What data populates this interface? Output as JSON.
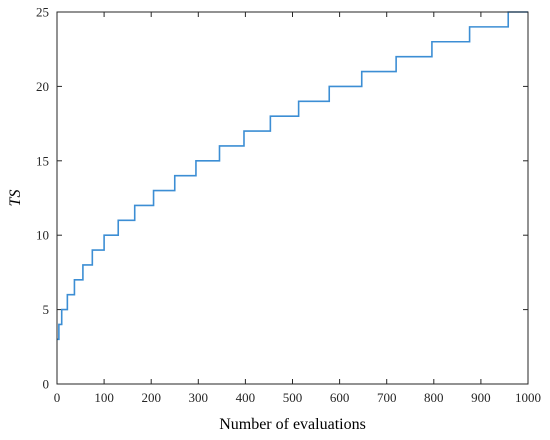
{
  "chart_data": {
    "type": "line",
    "title": "",
    "xlabel": "Number of evaluations",
    "ylabel": "TS",
    "xlim": [
      0,
      1000
    ],
    "ylim": [
      0,
      25
    ],
    "xticks": [
      0,
      100,
      200,
      300,
      400,
      500,
      600,
      700,
      800,
      900,
      1000
    ],
    "yticks": [
      0,
      5,
      10,
      15,
      20,
      25
    ],
    "grid": false,
    "legend": "none",
    "line_color": "#3c8ed4",
    "step": true,
    "series": [
      {
        "x": [
          0,
          4,
          10,
          22,
          37,
          55,
          75,
          100,
          130,
          165,
          205,
          250,
          295,
          345,
          397,
          453,
          513,
          578,
          647,
          720,
          796,
          876,
          958,
          1000
        ],
        "y": [
          3,
          4,
          5,
          6,
          7,
          8,
          9,
          10,
          11,
          12,
          13,
          14,
          15,
          16,
          17,
          18,
          19,
          20,
          21,
          22,
          23,
          24,
          25,
          25
        ]
      }
    ]
  }
}
